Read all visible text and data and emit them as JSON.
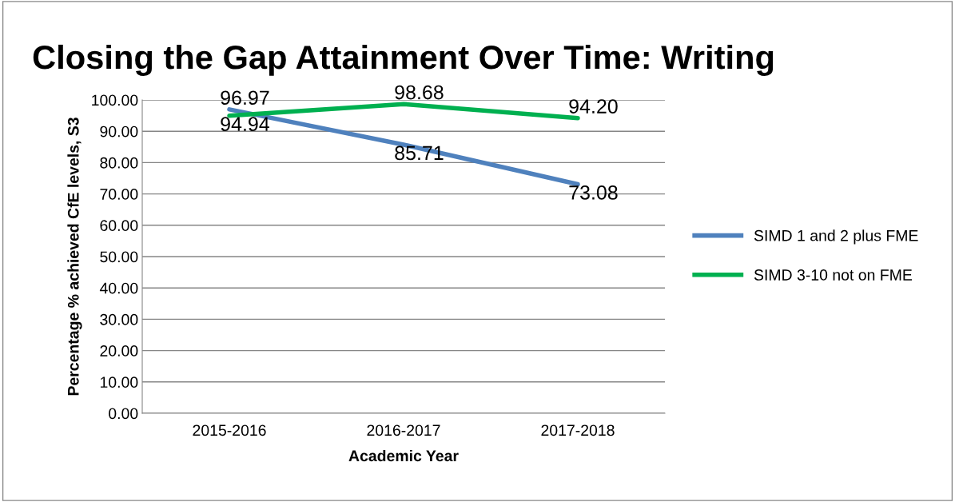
{
  "chart_data": {
    "type": "line",
    "title": "Closing the Gap Attainment Over Time: Writing",
    "xlabel": "Academic Year",
    "ylabel": "Percentage % achieved CfE levels, S3",
    "categories": [
      "2015-2016",
      "2016-2017",
      "2017-2018"
    ],
    "series": [
      {
        "name": "SIMD 1 and 2 plus FME",
        "color": "#4f81bd",
        "values": [
          96.97,
          85.71,
          73.08
        ],
        "value_labels": [
          "96.97",
          "85.71",
          "73.08"
        ]
      },
      {
        "name": "SIMD 3-10 not on FME",
        "color": "#00b050",
        "values": [
          94.94,
          98.68,
          94.2
        ],
        "value_labels": [
          "94.94",
          "98.68",
          "94.20"
        ]
      }
    ],
    "ylim": [
      0,
      100
    ],
    "yticks": [
      {
        "value": 0,
        "label": "0.00"
      },
      {
        "value": 10,
        "label": "10.00"
      },
      {
        "value": 20,
        "label": "20.00"
      },
      {
        "value": 30,
        "label": "30.00"
      },
      {
        "value": 40,
        "label": "40.00"
      },
      {
        "value": 50,
        "label": "50.00"
      },
      {
        "value": 60,
        "label": "60.00"
      },
      {
        "value": 70,
        "label": "70.00"
      },
      {
        "value": 80,
        "label": "80.00"
      },
      {
        "value": 90,
        "label": "90.00"
      },
      {
        "value": 100,
        "label": "100.00"
      }
    ],
    "grid": "y",
    "legend": "right",
    "marker": "none",
    "line_style": "solid"
  }
}
